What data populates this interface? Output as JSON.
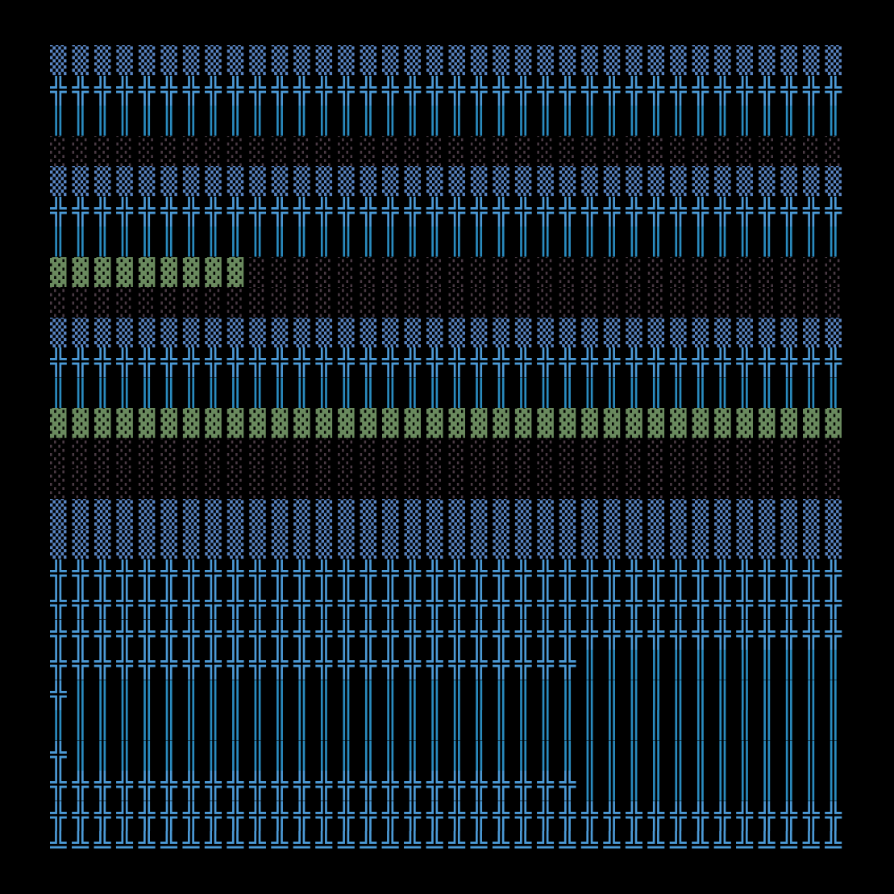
{
  "rows": [
    {
      "segments": [
        {
          "text": "▒▒▒▒▒▒▒▒▒▒▒▒▒▒▒▒▒▒▒▒▒▒▒▒▒▒▒▒▒▒▒▒▒▒▒▒",
          "color": "#5a86c4"
        }
      ]
    },
    {
      "segments": [
        {
          "text": "╬╬╬╬╬╬╬╬╬╬╬╬╬╬╬╬╬╬╬╬╬╬╬╬╬╬╬╬╬╬╬╬╬╬╬╬",
          "color": "#4c9ad6"
        }
      ]
    },
    {
      "segments": [
        {
          "text": "║║║║║║║║║║║║║║║║║║║║║║║║║║║║║║║║║║║║",
          "color": "#2a8bbf"
        }
      ]
    },
    {
      "segments": [
        {
          "text": "░░░░░░░░░░░░░░░░░░░░░░░░░░░░░░░░░░░░",
          "color": "#4a3a44"
        }
      ]
    },
    {
      "segments": [
        {
          "text": "▒▒▒▒▒▒▒▒▒▒▒▒▒▒▒▒▒▒▒▒▒▒▒▒▒▒▒▒▒▒▒▒▒▒▒▒",
          "color": "#5a86c4"
        }
      ]
    },
    {
      "segments": [
        {
          "text": "╬╬╬╬╬╬╬╬╬╬╬╬╬╬╬╬╬╬╬╬╬╬╬╬╬╬╬╬╬╬╬╬╬╬╬╬",
          "color": "#4c9ad6"
        }
      ]
    },
    {
      "segments": [
        {
          "text": "║║║║║║║║║║║║║║║║║║║║║║║║║║║║║║║║║║║║",
          "color": "#2a8bbf"
        }
      ]
    },
    {
      "segments": [
        {
          "text": "▓▓▓▓▓▓▓▓▓",
          "color": "#6a8a5e"
        },
        {
          "text": "░░░░░░░░░░░░░░░░░░░░░░░░░░░",
          "color": "#4a3a44"
        }
      ]
    },
    {
      "segments": [
        {
          "text": "░░░░░░░░░░░░░░░░░░░░░░░░░░░░░░░░░░░░",
          "color": "#4a3a44"
        }
      ]
    },
    {
      "segments": [
        {
          "text": "▒▒▒▒▒▒▒▒▒▒▒▒▒▒▒▒▒▒▒▒▒▒▒▒▒▒▒▒▒▒▒▒▒▒▒▒",
          "color": "#5a86c4"
        }
      ]
    },
    {
      "segments": [
        {
          "text": "╬╬╬╬╬╬╬╬╬╬╬╬╬╬╬╬╬╬╬╬╬╬╬╬╬╬╬╬╬╬╬╬╬╬╬╬",
          "color": "#4c9ad6"
        }
      ]
    },
    {
      "segments": [
        {
          "text": "║║║║║║║║║║║║║║║║║║║║║║║║║║║║║║║║║║║║",
          "color": "#2a8bbf"
        }
      ]
    },
    {
      "segments": [
        {
          "text": "▓▓▓▓▓▓▓▓▓▓▓▓▓▓▓▓▓▓▓▓▓▓▓▓▓▓▓▓▓▓▓▓▓▓▓▓",
          "color": "#6a8a5e"
        }
      ]
    },
    {
      "segments": [
        {
          "text": "░░░░░░░░░░░░░░░░░░░░░░░░░░░░░░░░░░░░",
          "color": "#4a3a44"
        }
      ]
    },
    {
      "segments": [
        {
          "text": "░░░░░░░░░░░░░░░░░░░░░░░░░░░░░░░░░░░░",
          "color": "#4a3a44"
        }
      ]
    },
    {
      "segments": [
        {
          "text": "▒▒▒▒▒▒▒▒▒▒▒▒▒▒▒▒▒▒▒▒▒▒▒▒▒▒▒▒▒▒▒▒▒▒▒▒",
          "color": "#5a86c4"
        }
      ]
    },
    {
      "segments": [
        {
          "text": "▒▒▒▒▒▒▒▒▒▒▒▒▒▒▒▒▒▒▒▒▒▒▒▒▒▒▒▒▒▒▒▒▒▒▒▒",
          "color": "#5a86c4"
        }
      ]
    },
    {
      "segments": [
        {
          "text": "╬╬╬╬╬╬╬╬╬╬╬╬╬╬╬╬╬╬╬╬╬╬╬╬╬╬╬╬╬╬╬╬╬╬╬╬",
          "color": "#4c9ad6"
        }
      ]
    },
    {
      "segments": [
        {
          "text": "╬╬╬╬╬╬╬╬╬╬╬╬╬╬╬╬╬╬╬╬╬╬╬╬╬╬╬╬╬╬╬╬╬╬╬╬",
          "color": "#4c9ad6"
        }
      ]
    },
    {
      "segments": [
        {
          "text": "╬╬╬╬╬╬╬╬╬╬╬╬╬╬╬╬╬╬╬╬╬╬╬╬╬╬╬╬╬╬╬╬╬╬╬╬",
          "color": "#4c9ad6"
        }
      ]
    },
    {
      "segments": [
        {
          "text": "╬╬╬╬╬╬╬╬╬╬╬╬╬╬╬╬╬╬╬╬╬╬╬╬",
          "color": "#4c9ad6"
        },
        {
          "text": "║║║║║║║║║║║║",
          "color": "#2a8bbf"
        }
      ]
    },
    {
      "segments": [
        {
          "text": "╬",
          "color": "#4c9ad6"
        },
        {
          "text": "║║║║║║║║║║║║║║║║║║║║║║║║║║║║║║║║║║║",
          "color": "#2a8bbf"
        }
      ]
    },
    {
      "segments": [
        {
          "text": "║║║║║║║║║║║║║║║║║║║║║║║║║║║║║║║║║║║║",
          "color": "#2a8bbf"
        }
      ]
    },
    {
      "segments": [
        {
          "text": "╬",
          "color": "#4c9ad6"
        },
        {
          "text": "║║║║║║║║║║║║║║║║║║║║║║║║║║║║║║║║║║║",
          "color": "#2a8bbf"
        }
      ]
    },
    {
      "segments": [
        {
          "text": "╬╬╬╬╬╬╬╬╬╬╬╬╬╬╬╬╬╬╬╬╬╬╬╬",
          "color": "#4c9ad6"
        },
        {
          "text": "║║║║║║║║║║║║",
          "color": "#2a8bbf"
        }
      ]
    },
    {
      "segments": [
        {
          "text": "╬╬╬╬╬╬╬╬╬╬╬╬╬╬╬╬╬╬╬╬╬╬╬╬╬╬╬╬╬╬╬╬╬╬╬╬",
          "color": "#4c9ad6"
        }
      ]
    },
    {
      "segments": [
        {
          "text": "╩╩╩╩╩╩╩╩╩╩╩╩╩╩╩╩╩╩╩╩╩╩╩╩╩╩╩╩╩╩╩╩╩╩╩╩",
          "color": "#4c9ad6"
        }
      ]
    }
  ]
}
